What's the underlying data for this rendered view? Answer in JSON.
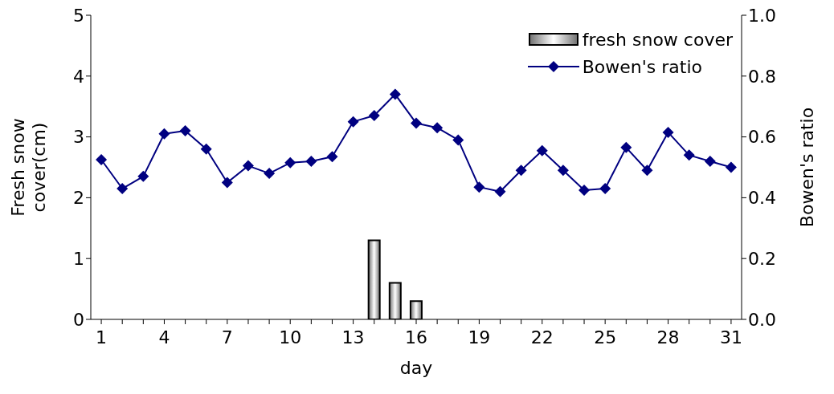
{
  "chart_data": {
    "type": "bar",
    "xlabel": "day",
    "ylabel": "Fresh snow cover(cm)",
    "y2label": "Bowen's ratio",
    "categories": [
      "1",
      null,
      null,
      "4",
      null,
      null,
      "7",
      null,
      null,
      "10",
      null,
      null,
      "13",
      null,
      null,
      "16",
      null,
      null,
      "19",
      null,
      null,
      "22",
      null,
      null,
      "25",
      null,
      null,
      "28",
      null,
      null,
      "31"
    ],
    "series": [
      {
        "name": "fresh snow cover",
        "color": "#000000",
        "values": [
          null,
          null,
          null,
          null,
          null,
          null,
          null,
          null,
          null,
          null,
          null,
          null,
          null,
          1.3,
          0.6,
          0.3,
          null,
          null,
          null,
          null,
          null,
          null,
          null,
          null,
          null,
          null,
          null,
          null,
          null,
          null,
          null
        ]
      },
      {
        "name": "Bowen's ratio",
        "type": "line",
        "axis": "y2",
        "color": "#000080",
        "marker": "diamond",
        "values": [
          0.525,
          0.43,
          0.47,
          0.61,
          0.62,
          0.56,
          0.45,
          0.505,
          0.48,
          0.515,
          0.52,
          0.535,
          0.65,
          0.67,
          0.74,
          0.645,
          0.63,
          0.59,
          0.435,
          0.42,
          0.49,
          0.555,
          0.49,
          0.425,
          0.43,
          0.565,
          0.49,
          0.615,
          0.54,
          0.52,
          0.5
        ]
      }
    ],
    "ylim": [
      0,
      5
    ],
    "yticks": [
      0,
      1,
      2,
      3,
      4,
      5
    ],
    "y2lim": [
      0,
      1
    ],
    "y2ticks": [
      {
        "value": 0,
        "label": "0.0"
      },
      {
        "value": 0.2,
        "label": "0.2"
      },
      {
        "value": 0.4,
        "label": "0.4"
      },
      {
        "value": 0.6,
        "label": "0.6"
      },
      {
        "value": 0.8,
        "label": "0.8"
      },
      {
        "value": 1,
        "label": "1.0"
      }
    ],
    "legend": "top right"
  }
}
